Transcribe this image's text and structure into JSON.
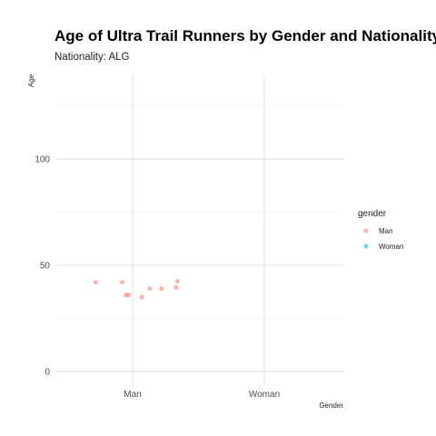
{
  "chart_data": {
    "type": "scatter",
    "title": "Age of Ultra Trail Runners by Gender and Nationality",
    "subtitle": "Nationality: ALG",
    "xlabel": "Gender",
    "ylabel": "Age",
    "categories": [
      "Man",
      "Woman"
    ],
    "ylim": [
      -7,
      139
    ],
    "yticks": [
      0,
      50,
      100
    ],
    "grid": true,
    "legend": {
      "title": "gender",
      "placement": "right",
      "entries": [
        {
          "label": "Man",
          "color": "#F8766D"
        },
        {
          "label": "Woman",
          "color": "#00BFC4"
        }
      ]
    },
    "series": [
      {
        "name": "Man",
        "color": "#F8766D",
        "points": [
          {
            "x": "Man",
            "jitter": -0.28,
            "y": 42
          },
          {
            "x": "Man",
            "jitter": -0.08,
            "y": 42
          },
          {
            "x": "Man",
            "jitter": -0.05,
            "y": 36
          },
          {
            "x": "Man",
            "jitter": -0.03,
            "y": 36
          },
          {
            "x": "Man",
            "jitter": 0.07,
            "y": 35
          },
          {
            "x": "Man",
            "jitter": 0.13,
            "y": 39
          },
          {
            "x": "Man",
            "jitter": 0.22,
            "y": 39
          },
          {
            "x": "Man",
            "jitter": 0.33,
            "y": 39.5
          },
          {
            "x": "Man",
            "jitter": 0.34,
            "y": 42.5
          }
        ]
      },
      {
        "name": "Woman",
        "color": "#00BFC4",
        "points": []
      }
    ]
  }
}
